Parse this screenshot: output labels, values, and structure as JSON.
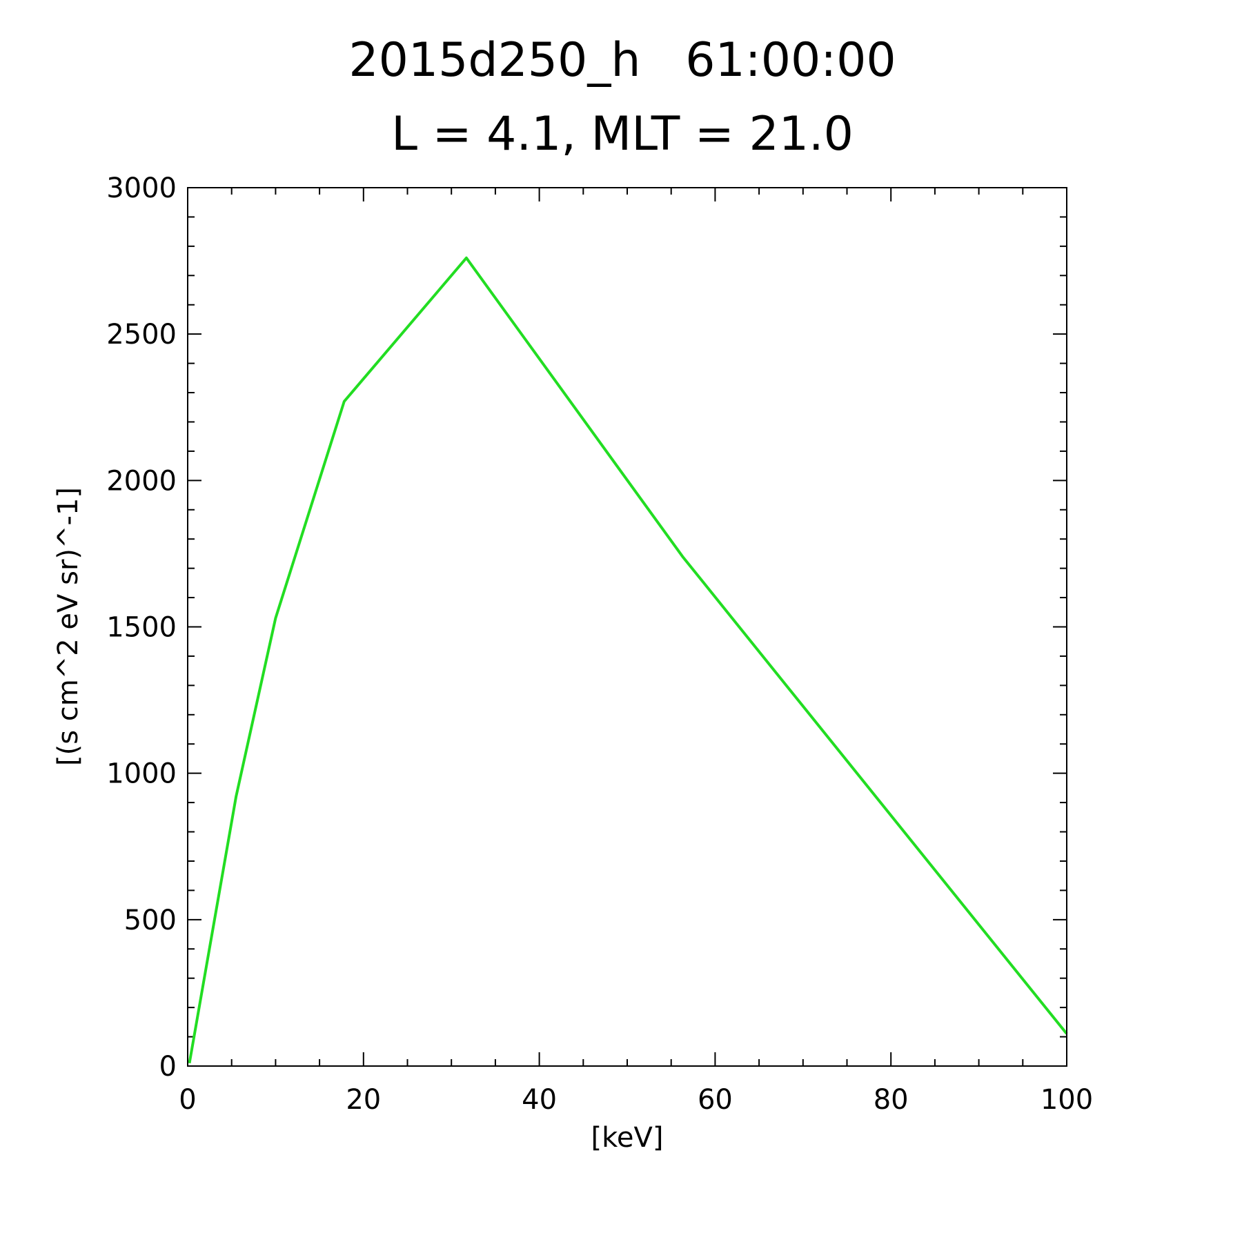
{
  "chart_data": {
    "type": "line",
    "title": "2015d250_h   61:00:00",
    "subtitle": "L = 4.1, MLT = 21.0",
    "xlabel": "[keV]",
    "ylabel": "[(s cm^2 eV sr)^-1]",
    "xlim": [
      0,
      100
    ],
    "ylim": [
      0,
      3000
    ],
    "x_ticks": [
      0,
      20,
      40,
      60,
      80,
      100
    ],
    "x_tick_labels": [
      "0",
      "20",
      "40",
      "60",
      "80",
      "100"
    ],
    "y_ticks": [
      0,
      500,
      1000,
      1500,
      2000,
      2500,
      3000
    ],
    "y_tick_labels": [
      "0",
      "500",
      "1000",
      "1500",
      "2000",
      "2500",
      "3000"
    ],
    "x_minor_step": 5,
    "y_minor_step": 100,
    "grid": false,
    "series": [
      {
        "color": "#22dd22",
        "x": [
          0.2,
          5.5,
          10,
          17.8,
          31.7,
          56.3,
          100
        ],
        "y": [
          10,
          920,
          1530,
          2270,
          2760,
          1740,
          110
        ]
      }
    ]
  }
}
